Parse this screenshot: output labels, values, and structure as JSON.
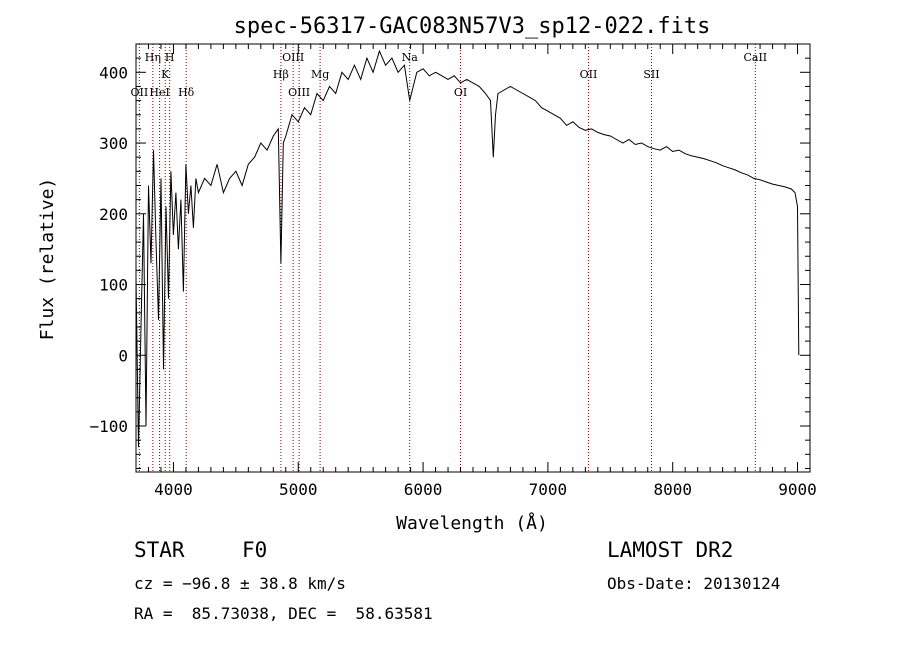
{
  "chart_data": {
    "type": "line",
    "title": "spec-56317-GAC083N57V3_sp12-022.fits",
    "xlabel": "Wavelength (Å)",
    "ylabel": "Flux (relative)",
    "xlim": [
      3700,
      9100
    ],
    "ylim": [
      -165,
      440
    ],
    "x_ticks": [
      4000,
      5000,
      6000,
      7000,
      8000,
      9000
    ],
    "y_ticks": [
      -100,
      0,
      100,
      200,
      300,
      400
    ],
    "x_tick_labels": [
      "4000",
      "5000",
      "6000",
      "7000",
      "8000",
      "9000"
    ],
    "y_tick_labels": [
      "−100",
      "0",
      "100",
      "200",
      "300",
      "400"
    ],
    "grid": false,
    "line_color": "#000000",
    "marker_color": "#8b0000",
    "series": [
      {
        "x": [
          3700,
          3720,
          3740,
          3760,
          3780,
          3800,
          3820,
          3840,
          3860,
          3880,
          3900,
          3920,
          3940,
          3960,
          3980,
          4000,
          4020,
          4040,
          4060,
          4080,
          4100,
          4120,
          4140,
          4160,
          4180,
          4200,
          4250,
          4300,
          4350,
          4400,
          4450,
          4500,
          4550,
          4600,
          4650,
          4700,
          4750,
          4800,
          4840,
          4861,
          4880,
          4900,
          4950,
          5000,
          5050,
          5100,
          5150,
          5200,
          5250,
          5300,
          5350,
          5400,
          5450,
          5500,
          5550,
          5600,
          5650,
          5700,
          5750,
          5800,
          5850,
          5893,
          5950,
          6000,
          6050,
          6100,
          6150,
          6200,
          6250,
          6300,
          6350,
          6400,
          6450,
          6500,
          6540,
          6563,
          6580,
          6600,
          6650,
          6700,
          6750,
          6800,
          6850,
          6900,
          6950,
          7000,
          7050,
          7100,
          7150,
          7200,
          7250,
          7300,
          7350,
          7400,
          7450,
          7500,
          7550,
          7600,
          7650,
          7700,
          7750,
          7800,
          7850,
          7900,
          7950,
          8000,
          8050,
          8100,
          8150,
          8200,
          8250,
          8300,
          8350,
          8400,
          8450,
          8500,
          8550,
          8600,
          8650,
          8700,
          8750,
          8800,
          8850,
          8900,
          8950,
          8980,
          9000,
          9010
        ],
        "y": [
          110,
          -130,
          40,
          200,
          -100,
          240,
          130,
          290,
          160,
          50,
          250,
          -20,
          210,
          80,
          260,
          170,
          230,
          150,
          220,
          90,
          270,
          200,
          240,
          180,
          250,
          230,
          250,
          240,
          270,
          230,
          250,
          260,
          240,
          270,
          280,
          300,
          290,
          310,
          320,
          130,
          300,
          310,
          340,
          330,
          350,
          340,
          370,
          360,
          380,
          370,
          400,
          390,
          410,
          390,
          420,
          400,
          430,
          410,
          420,
          400,
          410,
          360,
          400,
          405,
          395,
          400,
          395,
          390,
          395,
          385,
          390,
          385,
          380,
          370,
          360,
          280,
          340,
          370,
          375,
          380,
          375,
          370,
          365,
          360,
          350,
          345,
          340,
          335,
          325,
          330,
          322,
          318,
          320,
          315,
          312,
          310,
          305,
          300,
          305,
          298,
          300,
          295,
          292,
          290,
          295,
          288,
          290,
          285,
          282,
          280,
          278,
          275,
          272,
          268,
          265,
          262,
          258,
          255,
          250,
          248,
          245,
          242,
          240,
          238,
          235,
          230,
          210,
          0
        ]
      }
    ],
    "line_markers": [
      {
        "label": "Hη",
        "x": 3835,
        "row": 0
      },
      {
        "label": "H",
        "x": 3970,
        "row": 0
      },
      {
        "label": "K",
        "x": 3934,
        "row": 1
      },
      {
        "label": "OII",
        "x": 3727,
        "row": 2
      },
      {
        "label": "HeI",
        "x": 3889,
        "row": 2
      },
      {
        "label": "Hδ",
        "x": 4102,
        "row": 2
      },
      {
        "label": "OIII",
        "x": 4959,
        "row": 0
      },
      {
        "label": "Hβ",
        "x": 4861,
        "row": 1
      },
      {
        "label": "Mg",
        "x": 5175,
        "row": 1
      },
      {
        "label": "OIII",
        "x": 5007,
        "row": 2
      },
      {
        "label": "Na",
        "x": 5893,
        "row": 0
      },
      {
        "label": "OI",
        "x": 6300,
        "row": 2
      },
      {
        "label": "OII",
        "x": 7325,
        "row": 1
      },
      {
        "label": "SII",
        "x": 7830,
        "row": 1
      },
      {
        "label": "CaII",
        "x": 8662,
        "row": 0
      }
    ]
  },
  "info": {
    "class_label": "STAR",
    "subclass": "F0",
    "survey": "LAMOST DR2",
    "redshift_line": "cz = −96.8 ± 38.8 km/s",
    "obs_date": "Obs-Date: 20130124",
    "coords": "RA =  85.73038, DEC =  58.63581"
  }
}
